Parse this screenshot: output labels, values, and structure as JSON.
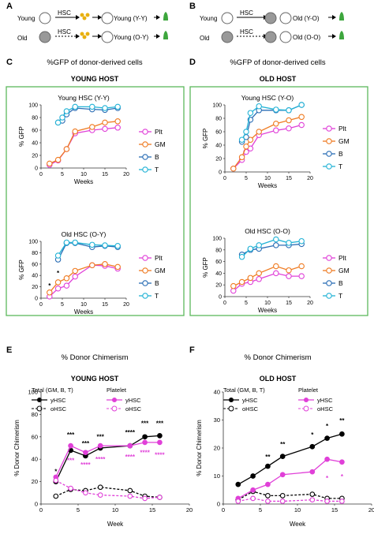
{
  "colors": {
    "plt": "#e040d8",
    "gm": "#ef7b22",
    "b": "#2a6db5",
    "t": "#23b3d6",
    "panel_border": "#5cb85c",
    "yhsc": "#000000",
    "ohsc": "#000000",
    "platelet": "#e040d8",
    "gfp_cell": "#3da63d",
    "old_cell": "#999999",
    "stem": "#e8b010"
  },
  "panels": {
    "A": {
      "label": "A",
      "young": "Young",
      "old": "Old",
      "hsc": "HSC",
      "out_yy": "Young (Y-Y)",
      "out_oy": "Young (O-Y)"
    },
    "B": {
      "label": "B",
      "young": "Young",
      "old": "Old",
      "hsc": "HSC",
      "out_yo": "Old (Y-O)",
      "out_oo": "Old (O-O)"
    },
    "C": {
      "label": "C",
      "title": "%GFP of donor-derived cells",
      "host": "YOUNG HOST"
    },
    "D": {
      "label": "D",
      "title": "%GFP of donor-derived cells",
      "host": "OLD HOST"
    },
    "E": {
      "label": "E",
      "title": "% Donor Chimerism",
      "host": "YOUNG HOST",
      "legend_total": "Total (GM, B, T)",
      "legend_platelet": "Platelet",
      "yhsc": "yHSC",
      "ohsc": "oHSC"
    },
    "F": {
      "label": "F",
      "title": "% Donor Chimerism",
      "host": "OLD HOST",
      "legend_total": "Total (GM, B, T)",
      "legend_platelet": "Platelet",
      "yhsc": "yHSC",
      "ohsc": "oHSC"
    }
  },
  "chart_data": [
    {
      "id": "C1",
      "type": "line",
      "title": "Young HSC (Y-Y)",
      "xlabel": "Weeks",
      "ylabel": "% GFP",
      "xlim": [
        0,
        20
      ],
      "ylim": [
        0,
        100
      ],
      "xticks": [
        0,
        5,
        10,
        15,
        20
      ],
      "yticks": [
        0,
        20,
        40,
        60,
        80,
        100
      ],
      "legend": "right",
      "series": [
        {
          "name": "Plt",
          "key": "plt",
          "x": [
            2,
            4,
            6,
            8,
            12,
            15,
            18
          ],
          "y": [
            5,
            12,
            30,
            55,
            60,
            62,
            64
          ]
        },
        {
          "name": "GM",
          "key": "gm",
          "x": [
            2,
            4,
            6,
            8,
            12,
            15,
            18
          ],
          "y": [
            7,
            13,
            30,
            58,
            65,
            72,
            74
          ]
        },
        {
          "name": "B",
          "key": "b",
          "x": [
            4,
            5,
            6,
            8,
            12,
            15,
            18
          ],
          "y": [
            72,
            75,
            85,
            95,
            93,
            92,
            95
          ]
        },
        {
          "name": "T",
          "key": "t",
          "x": [
            4,
            5,
            6,
            8,
            12,
            15,
            18
          ],
          "y": [
            72,
            80,
            90,
            97,
            97,
            95,
            97
          ]
        }
      ],
      "markers": []
    },
    {
      "id": "C2",
      "type": "line",
      "title": "Old HSC (O-Y)",
      "xlabel": "Weeks",
      "ylabel": "% GFP",
      "xlim": [
        0,
        20
      ],
      "ylim": [
        0,
        100
      ],
      "xticks": [
        0,
        5,
        10,
        15,
        20
      ],
      "yticks": [
        0,
        20,
        40,
        60,
        80,
        100
      ],
      "legend": "right",
      "series": [
        {
          "name": "Plt",
          "key": "plt",
          "x": [
            2,
            4,
            6,
            8,
            12,
            15,
            18
          ],
          "y": [
            3,
            17,
            22,
            38,
            58,
            57,
            52
          ]
        },
        {
          "name": "GM",
          "key": "gm",
          "x": [
            2,
            4,
            6,
            8,
            12,
            15,
            18
          ],
          "y": [
            10,
            28,
            35,
            48,
            58,
            60,
            55
          ]
        },
        {
          "name": "B",
          "key": "b",
          "x": [
            4,
            6,
            8,
            12,
            15,
            18
          ],
          "y": [
            68,
            97,
            97,
            90,
            92,
            90
          ]
        },
        {
          "name": "T",
          "key": "t",
          "x": [
            4,
            6,
            8,
            12,
            15,
            18
          ],
          "y": [
            75,
            98,
            98,
            94,
            93,
            92
          ]
        }
      ],
      "markers": [
        {
          "text": "*",
          "x": 2,
          "y": 18
        },
        {
          "text": "*",
          "x": 4,
          "y": 40
        }
      ]
    },
    {
      "id": "D1",
      "type": "line",
      "title": "Young HSC (Y-O)",
      "xlabel": "Weeks",
      "ylabel": "% GFP",
      "xlim": [
        0,
        20
      ],
      "ylim": [
        0,
        100
      ],
      "xticks": [
        0,
        5,
        10,
        15,
        20
      ],
      "yticks": [
        0,
        20,
        40,
        60,
        80,
        100
      ],
      "legend": "right",
      "series": [
        {
          "name": "Plt",
          "key": "plt",
          "x": [
            2,
            4,
            5,
            6,
            8,
            12,
            15,
            18
          ],
          "y": [
            5,
            18,
            30,
            35,
            55,
            62,
            65,
            70
          ]
        },
        {
          "name": "GM",
          "key": "gm",
          "x": [
            2,
            4,
            5,
            6,
            8,
            12,
            15,
            18
          ],
          "y": [
            5,
            22,
            38,
            48,
            60,
            72,
            77,
            82
          ]
        },
        {
          "name": "B",
          "key": "b",
          "x": [
            4,
            5,
            6,
            8,
            12,
            15,
            18
          ],
          "y": [
            45,
            52,
            78,
            92,
            92,
            92,
            100
          ]
        },
        {
          "name": "T",
          "key": "t",
          "x": [
            4,
            5,
            6,
            8,
            12,
            15,
            18
          ],
          "y": [
            48,
            60,
            88,
            98,
            93,
            92,
            100
          ]
        }
      ],
      "markers": []
    },
    {
      "id": "D2",
      "type": "line",
      "title": "Old HSC (O-O)",
      "xlabel": "Weeks",
      "ylabel": "% GFP",
      "xlim": [
        0,
        20
      ],
      "ylim": [
        0,
        100
      ],
      "xticks": [
        0,
        5,
        10,
        15,
        20
      ],
      "yticks": [
        0,
        20,
        40,
        60,
        80,
        100
      ],
      "legend": "right",
      "series": [
        {
          "name": "Plt",
          "key": "plt",
          "x": [
            2,
            4,
            6,
            8,
            12,
            15,
            18
          ],
          "y": [
            10,
            22,
            25,
            30,
            40,
            35,
            35
          ]
        },
        {
          "name": "GM",
          "key": "gm",
          "x": [
            2,
            4,
            6,
            8,
            12,
            15,
            18
          ],
          "y": [
            18,
            25,
            32,
            40,
            52,
            45,
            52
          ]
        },
        {
          "name": "B",
          "key": "b",
          "x": [
            4,
            6,
            8,
            12,
            15,
            18
          ],
          "y": [
            72,
            80,
            82,
            88,
            88,
            90
          ]
        },
        {
          "name": "T",
          "key": "t",
          "x": [
            4,
            6,
            8,
            12,
            15,
            18
          ],
          "y": [
            68,
            82,
            88,
            98,
            92,
            95
          ]
        }
      ],
      "markers": []
    },
    {
      "id": "E",
      "type": "line",
      "title": "% Donor Chimerism",
      "xlabel": "Week",
      "ylabel": "% Donor Chimerism",
      "xlim": [
        0,
        20
      ],
      "ylim": [
        0,
        100
      ],
      "xticks": [
        0,
        5,
        10,
        15,
        20
      ],
      "yticks": [
        0,
        20,
        40,
        60,
        80,
        100
      ],
      "legend": "top",
      "series": [
        {
          "name": "yHSC",
          "group": "total",
          "x": [
            2,
            4,
            6,
            8,
            12,
            14,
            16
          ],
          "y": [
            20,
            48,
            43,
            50,
            52,
            60,
            61
          ]
        },
        {
          "name": "oHSC",
          "group": "total",
          "x": [
            2,
            4,
            6,
            8,
            12,
            14,
            16
          ],
          "y": [
            7,
            13,
            12,
            15,
            12,
            7,
            6
          ]
        },
        {
          "name": "yHSC",
          "group": "platelet",
          "x": [
            2,
            4,
            6,
            8,
            12,
            14,
            16
          ],
          "y": [
            24,
            52,
            46,
            52,
            52,
            55,
            55
          ]
        },
        {
          "name": "oHSC",
          "group": "platelet",
          "x": [
            2,
            4,
            6,
            8,
            12,
            14,
            16
          ],
          "y": [
            21,
            14,
            10,
            8,
            7,
            5,
            6
          ]
        }
      ],
      "markers": [
        {
          "text": "*",
          "x": 2,
          "y": 27,
          "color": "yhsc"
        },
        {
          "text": "***",
          "x": 4,
          "y": 60,
          "color": "yhsc"
        },
        {
          "text": "***",
          "x": 6,
          "y": 52,
          "color": "yhsc"
        },
        {
          "text": "***",
          "x": 8,
          "y": 58,
          "color": "yhsc"
        },
        {
          "text": "****",
          "x": 12,
          "y": 62,
          "color": "yhsc"
        },
        {
          "text": "***",
          "x": 14,
          "y": 70,
          "color": "yhsc"
        },
        {
          "text": "***",
          "x": 16,
          "y": 70,
          "color": "yhsc"
        },
        {
          "text": "***",
          "x": 4,
          "y": 37,
          "color": "platelet"
        },
        {
          "text": "****",
          "x": 6,
          "y": 33,
          "color": "platelet"
        },
        {
          "text": "****",
          "x": 8,
          "y": 38,
          "color": "platelet"
        },
        {
          "text": "****",
          "x": 12,
          "y": 40,
          "color": "platelet"
        },
        {
          "text": "****",
          "x": 14,
          "y": 44,
          "color": "platelet"
        },
        {
          "text": "****",
          "x": 16,
          "y": 42,
          "color": "platelet"
        }
      ]
    },
    {
      "id": "F",
      "type": "line",
      "title": "% Donor Chimerism",
      "xlabel": "Week",
      "ylabel": "% Donor Chimerism",
      "xlim": [
        0,
        20
      ],
      "ylim": [
        0,
        40
      ],
      "xticks": [
        0,
        5,
        10,
        15,
        20
      ],
      "yticks": [
        0,
        10,
        20,
        30,
        40
      ],
      "legend": "top",
      "series": [
        {
          "name": "yHSC",
          "group": "total",
          "x": [
            2,
            4,
            6,
            8,
            12,
            14,
            16
          ],
          "y": [
            7,
            10,
            13.5,
            17,
            20.5,
            23.5,
            25
          ]
        },
        {
          "name": "oHSC",
          "group": "total",
          "x": [
            2,
            4,
            6,
            8,
            12,
            14,
            16
          ],
          "y": [
            1.5,
            4.5,
            3,
            3,
            3.5,
            2,
            2
          ]
        },
        {
          "name": "yHSC",
          "group": "platelet",
          "x": [
            2,
            4,
            6,
            8,
            12,
            14,
            16
          ],
          "y": [
            2,
            5,
            7,
            10.5,
            11.5,
            16,
            15
          ]
        },
        {
          "name": "oHSC",
          "group": "platelet",
          "x": [
            2,
            4,
            6,
            8,
            12,
            14,
            16
          ],
          "y": [
            1,
            2,
            1,
            1,
            1.5,
            1,
            1
          ]
        }
      ],
      "markers": [
        {
          "text": "**",
          "x": 6,
          "y": 16,
          "color": "yhsc"
        },
        {
          "text": "**",
          "x": 8,
          "y": 20.5,
          "color": "yhsc"
        },
        {
          "text": "*",
          "x": 12,
          "y": 24,
          "color": "yhsc"
        },
        {
          "text": "*",
          "x": 14,
          "y": 27,
          "color": "yhsc"
        },
        {
          "text": "**",
          "x": 16,
          "y": 29,
          "color": "yhsc"
        },
        {
          "text": "*",
          "x": 14,
          "y": 8.5,
          "color": "platelet"
        },
        {
          "text": "*",
          "x": 16,
          "y": 9,
          "color": "platelet"
        }
      ]
    }
  ]
}
